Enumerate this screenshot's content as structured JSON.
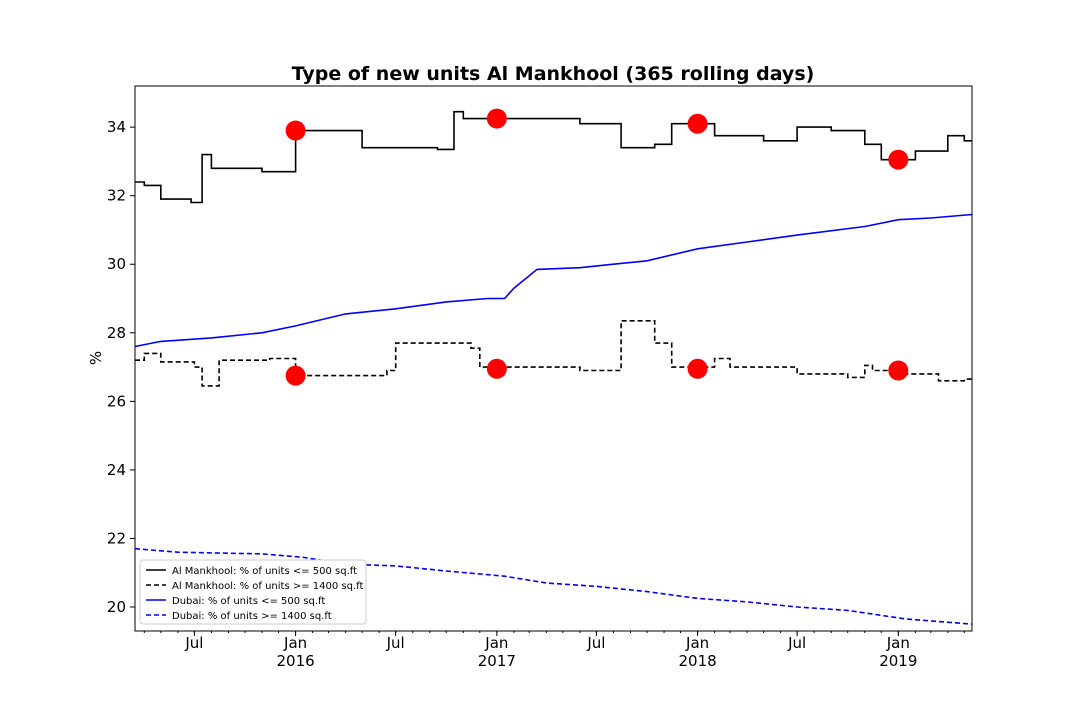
{
  "chart_data": {
    "type": "line",
    "title": "Type of new units Al Mankhool (365 rolling days)",
    "xlabel": "",
    "ylabel": "%",
    "xlim": [
      "2015-03-15",
      "2019-05-15"
    ],
    "ylim": [
      19.3,
      35.2
    ],
    "yticks": [
      20,
      22,
      24,
      26,
      28,
      30,
      32,
      34
    ],
    "xticks": [
      {
        "date": "2015-07-01",
        "label": "Jul",
        "sub": ""
      },
      {
        "date": "2016-01-01",
        "label": "Jan",
        "sub": "2016"
      },
      {
        "date": "2016-07-01",
        "label": "Jul",
        "sub": ""
      },
      {
        "date": "2017-01-01",
        "label": "Jan",
        "sub": "2017"
      },
      {
        "date": "2017-07-01",
        "label": "Jul",
        "sub": ""
      },
      {
        "date": "2018-01-01",
        "label": "Jan",
        "sub": "2018"
      },
      {
        "date": "2018-07-01",
        "label": "Jul",
        "sub": ""
      },
      {
        "date": "2019-01-01",
        "label": "Jan",
        "sub": "2019"
      }
    ],
    "grid": false,
    "legend_position": "bottom-left",
    "series": [
      {
        "name": "Al Mankhool: % of units <= 500 sq.ft",
        "color": "#000000",
        "style": "solid",
        "step": true,
        "points": [
          [
            "2015-03-15",
            32.4
          ],
          [
            "2015-04-01",
            32.3
          ],
          [
            "2015-05-01",
            31.9
          ],
          [
            "2015-06-25",
            31.8
          ],
          [
            "2015-07-15",
            33.2
          ],
          [
            "2015-08-01",
            32.8
          ],
          [
            "2015-09-15",
            32.8
          ],
          [
            "2015-11-01",
            32.7
          ],
          [
            "2016-01-01",
            33.9
          ],
          [
            "2016-05-01",
            33.4
          ],
          [
            "2016-09-15",
            33.35
          ],
          [
            "2016-10-15",
            34.45
          ],
          [
            "2016-11-01",
            34.25
          ],
          [
            "2017-05-01",
            34.25
          ],
          [
            "2017-06-01",
            34.1
          ],
          [
            "2017-08-15",
            33.4
          ],
          [
            "2017-10-15",
            33.5
          ],
          [
            "2017-11-15",
            34.1
          ],
          [
            "2018-02-01",
            33.75
          ],
          [
            "2018-05-01",
            33.6
          ],
          [
            "2018-07-01",
            34.0
          ],
          [
            "2018-09-01",
            33.9
          ],
          [
            "2018-11-01",
            33.5
          ],
          [
            "2018-12-01",
            33.05
          ],
          [
            "2019-02-01",
            33.3
          ],
          [
            "2019-04-01",
            33.75
          ],
          [
            "2019-05-01",
            33.6
          ],
          [
            "2019-05-15",
            33.6
          ]
        ]
      },
      {
        "name": "Al Mankhool: % of units >= 1400 sq.ft",
        "color": "#000000",
        "style": "dashed",
        "step": true,
        "points": [
          [
            "2015-03-15",
            27.2
          ],
          [
            "2015-04-01",
            27.4
          ],
          [
            "2015-05-01",
            27.15
          ],
          [
            "2015-07-01",
            27.0
          ],
          [
            "2015-07-15",
            26.45
          ],
          [
            "2015-08-15",
            27.2
          ],
          [
            "2015-11-15",
            27.25
          ],
          [
            "2016-01-01",
            26.75
          ],
          [
            "2016-06-15",
            26.9
          ],
          [
            "2016-07-01",
            27.7
          ],
          [
            "2016-11-15",
            27.55
          ],
          [
            "2016-12-01",
            27.0
          ],
          [
            "2017-06-01",
            26.9
          ],
          [
            "2017-08-15",
            28.35
          ],
          [
            "2017-10-15",
            27.7
          ],
          [
            "2017-11-15",
            27.0
          ],
          [
            "2018-02-01",
            27.25
          ],
          [
            "2018-03-01",
            27.0
          ],
          [
            "2018-07-01",
            26.8
          ],
          [
            "2018-10-01",
            26.7
          ],
          [
            "2018-11-01",
            27.05
          ],
          [
            "2018-11-15",
            26.9
          ],
          [
            "2019-01-01",
            26.8
          ],
          [
            "2019-03-15",
            26.6
          ],
          [
            "2019-05-01",
            26.65
          ],
          [
            "2019-05-15",
            26.65
          ]
        ]
      },
      {
        "name": "Dubai: % of units <= 500 sq.ft",
        "color": "#0000ff",
        "style": "solid",
        "step": false,
        "points": [
          [
            "2015-03-15",
            27.6
          ],
          [
            "2015-05-01",
            27.75
          ],
          [
            "2015-08-01",
            27.85
          ],
          [
            "2015-11-01",
            28.0
          ],
          [
            "2016-01-01",
            28.2
          ],
          [
            "2016-04-01",
            28.55
          ],
          [
            "2016-07-01",
            28.7
          ],
          [
            "2016-10-01",
            28.9
          ],
          [
            "2016-12-15",
            29.0
          ],
          [
            "2017-01-15",
            29.0
          ],
          [
            "2017-02-01",
            29.3
          ],
          [
            "2017-03-15",
            29.85
          ],
          [
            "2017-06-01",
            29.9
          ],
          [
            "2017-08-01",
            30.0
          ],
          [
            "2017-10-01",
            30.1
          ],
          [
            "2018-01-01",
            30.45
          ],
          [
            "2018-04-01",
            30.65
          ],
          [
            "2018-07-01",
            30.85
          ],
          [
            "2018-11-01",
            31.1
          ],
          [
            "2019-01-01",
            31.3
          ],
          [
            "2019-03-01",
            31.35
          ],
          [
            "2019-05-15",
            31.45
          ]
        ]
      },
      {
        "name": "Dubai: % of units >= 1400 sq.ft",
        "color": "#0000ff",
        "style": "dashed",
        "step": false,
        "points": [
          [
            "2015-03-15",
            21.7
          ],
          [
            "2015-06-01",
            21.6
          ],
          [
            "2015-11-01",
            21.55
          ],
          [
            "2016-01-15",
            21.45
          ],
          [
            "2016-04-01",
            21.25
          ],
          [
            "2016-07-01",
            21.2
          ],
          [
            "2016-10-01",
            21.05
          ],
          [
            "2017-01-15",
            20.9
          ],
          [
            "2017-04-01",
            20.7
          ],
          [
            "2017-07-01",
            20.6
          ],
          [
            "2017-10-01",
            20.45
          ],
          [
            "2018-01-01",
            20.25
          ],
          [
            "2018-04-01",
            20.15
          ],
          [
            "2018-07-01",
            20.0
          ],
          [
            "2018-10-01",
            19.9
          ],
          [
            "2019-01-15",
            19.65
          ],
          [
            "2019-05-15",
            19.5
          ]
        ]
      }
    ],
    "markers": {
      "color": "#ff0000",
      "points": [
        [
          "2016-01-01",
          33.9
        ],
        [
          "2017-01-01",
          34.25
        ],
        [
          "2018-01-01",
          34.1
        ],
        [
          "2019-01-01",
          33.05
        ],
        [
          "2016-01-01",
          26.75
        ],
        [
          "2017-01-01",
          26.95
        ],
        [
          "2018-01-01",
          26.95
        ],
        [
          "2019-01-01",
          26.9
        ]
      ]
    }
  }
}
